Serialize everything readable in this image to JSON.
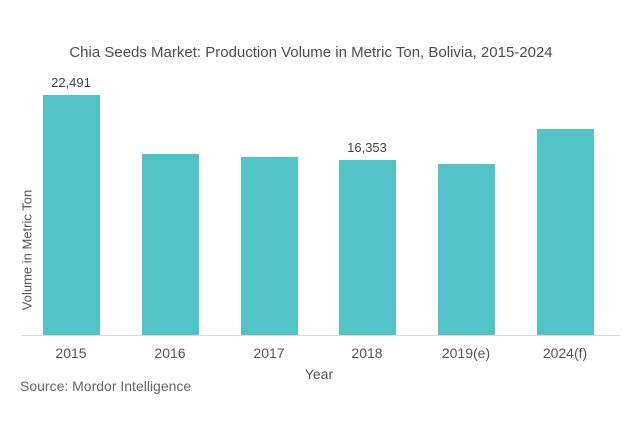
{
  "chart_data": {
    "type": "bar",
    "title": "Chia Seeds Market: Production Volume in Metric Ton, Bolivia, 2015-2024",
    "xlabel": "Year",
    "ylabel": "Volume in Metric Ton",
    "categories": [
      "2015",
      "2016",
      "2017",
      "2018",
      "2019(e)",
      "2024(f)"
    ],
    "values": [
      22491,
      16960,
      16680,
      16353,
      16020,
      19300
    ],
    "data_labels": {
      "2015": "22,491",
      "2018": "16,353"
    },
    "ylim": [
      0,
      22491
    ],
    "grid": false,
    "legend": "none",
    "bar_color": "#52c3c7"
  },
  "labels": {
    "title": "Chia Seeds Market: Production Volume in Metric Ton, Bolivia, 2015-2024",
    "ylabel": "Volume in Metric Ton",
    "xlabel": "Year",
    "source": "Source: Mordor Intelligence",
    "value_2015": "22,491",
    "value_2018": "16,353",
    "ticks": [
      "2015",
      "2016",
      "2017",
      "2018",
      "2019(e)",
      "2024(f)"
    ]
  }
}
